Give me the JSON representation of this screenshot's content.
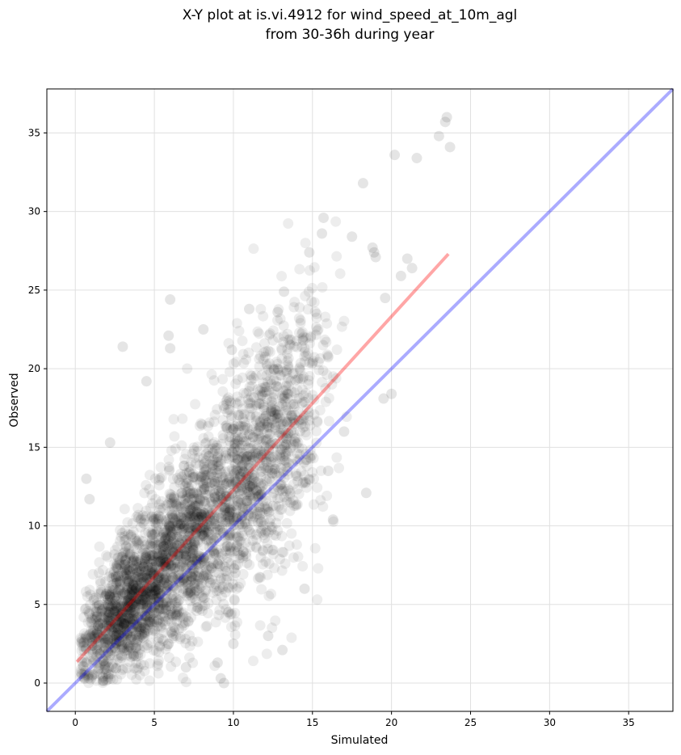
{
  "chart_data": {
    "type": "scatter",
    "title_lines": [
      "X-Y plot at is.vi.4912 for wind_speed_at_10m_agl",
      "from 30-36h during year"
    ],
    "xlabel": "Simulated",
    "ylabel": "Observed",
    "xlim": [
      -1.8,
      37.8
    ],
    "ylim": [
      -1.8,
      37.8
    ],
    "xticks": [
      0,
      5,
      10,
      15,
      20,
      25,
      30,
      35
    ],
    "yticks": [
      0,
      5,
      10,
      15,
      20,
      25,
      30,
      35
    ],
    "grid": true,
    "point_color": "#000000",
    "point_opacity": 0.07,
    "fit_line": {
      "color": "#ff0000",
      "opacity": 0.35,
      "x": [
        0.1,
        23.6
      ],
      "y": [
        1.35,
        27.3
      ]
    },
    "identity_line": {
      "color": "#0000ff",
      "opacity": 0.33,
      "x": [
        -1.8,
        37.8
      ],
      "y": [
        -1.8,
        37.8
      ]
    },
    "sample_points": {
      "x": [
        23.5,
        23.4,
        23.0,
        23.7,
        20.2,
        21.6,
        18.2,
        15.7,
        15.6,
        17.5,
        14.8,
        18.8,
        18.9,
        19.0,
        21.0,
        21.3,
        20.6,
        13.2,
        12.8,
        14.4,
        11.0,
        9.9,
        8.1,
        6.0,
        5.9,
        6.0,
        3.0,
        4.5,
        2.2,
        0.7,
        0.9,
        13.1,
        9.2,
        9.4,
        10.0,
        16.3,
        18.4,
        19.5,
        20.0,
        19.6,
        14.5,
        12.2,
        7.0,
        9.0,
        16.0,
        17.0
      ],
      "y": [
        36.0,
        35.7,
        34.8,
        34.1,
        33.6,
        33.4,
        31.8,
        29.6,
        28.6,
        28.4,
        27.4,
        27.7,
        27.4,
        27.1,
        27.0,
        26.4,
        25.9,
        24.9,
        23.6,
        21.8,
        23.8,
        21.2,
        22.5,
        24.4,
        22.1,
        21.3,
        21.4,
        19.2,
        15.3,
        13.0,
        11.7,
        2.1,
        0.3,
        0.0,
        2.5,
        10.4,
        12.1,
        18.1,
        18.4,
        24.5,
        6.0,
        3.0,
        1.0,
        1.3,
        13.5,
        16.0
      ]
    }
  }
}
